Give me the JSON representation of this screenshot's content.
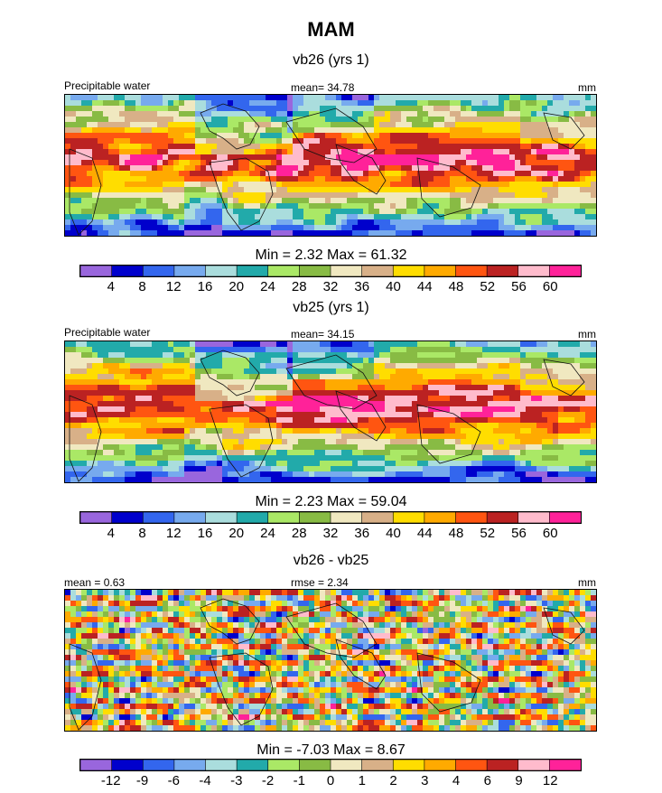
{
  "chart_data": [
    {
      "type": "heatmap",
      "title": "MAM",
      "panel_title": "vb26 (yrs 1)",
      "left_label": "Precipitable water",
      "center_label": "mean=  34.78",
      "units": "mm",
      "minmax_text": "Min =   2.32 Max =  61.32",
      "min": 2.32,
      "max": 61.32,
      "mean": 34.78,
      "colorbar_levels": [
        "4",
        "8",
        "12",
        "16",
        "20",
        "24",
        "28",
        "32",
        "36",
        "40",
        "44",
        "48",
        "52",
        "56",
        "60"
      ]
    },
    {
      "type": "heatmap",
      "panel_title": "vb25 (yrs 1)",
      "left_label": "Precipitable water",
      "center_label": "mean=  34.15",
      "units": "mm",
      "minmax_text": "Min =   2.23 Max =  59.04",
      "min": 2.23,
      "max": 59.04,
      "mean": 34.15,
      "colorbar_levels": [
        "4",
        "8",
        "12",
        "16",
        "20",
        "24",
        "28",
        "32",
        "36",
        "40",
        "44",
        "48",
        "52",
        "56",
        "60"
      ]
    },
    {
      "type": "heatmap",
      "panel_title": "vb26 - vb25",
      "left_label": "mean =   0.63",
      "center_label": "rmse =   2.34",
      "units": "mm",
      "minmax_text": "Min =  -7.03 Max =   8.67",
      "min": -7.03,
      "max": 8.67,
      "mean": 0.63,
      "rmse": 2.34,
      "colorbar_levels": [
        "-12",
        "-9",
        "-6",
        "-4",
        "-3",
        "-2",
        "-1",
        "0",
        "1",
        "2",
        "3",
        "4",
        "6",
        "9",
        "12"
      ]
    }
  ],
  "palette": [
    "#9966dd",
    "#0000cc",
    "#3366ee",
    "#77aaee",
    "#aadddd",
    "#22aaaa",
    "#aae866",
    "#88bb44",
    "#f0e8c0",
    "#d8b088",
    "#ffdd00",
    "#ffaa00",
    "#ff5511",
    "#bb2222",
    "#ffbbcc",
    "#ff2299"
  ]
}
